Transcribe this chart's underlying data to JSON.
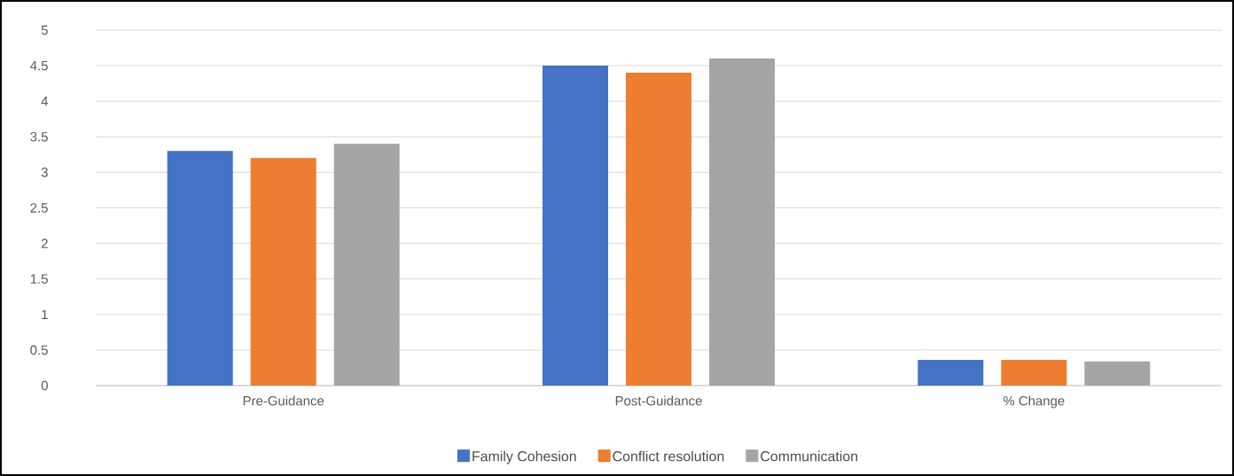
{
  "chart_data": {
    "type": "bar",
    "categories": [
      "Pre-Guidance",
      "Post-Guidance",
      "% Change"
    ],
    "series": [
      {
        "name": "Family Cohesion",
        "color": "#4472c4",
        "values": [
          3.3,
          4.5,
          0.36
        ]
      },
      {
        "name": "Conflict resolution",
        "color": "#ed7d31",
        "values": [
          3.2,
          4.4,
          0.36
        ]
      },
      {
        "name": "Communication",
        "color": "#a5a5a5",
        "values": [
          3.4,
          4.6,
          0.34
        ]
      }
    ],
    "ylim": [
      0,
      5
    ],
    "yticks": [
      0,
      0.5,
      1,
      1.5,
      2,
      2.5,
      3,
      3.5,
      4,
      4.5,
      5
    ],
    "grid": "y",
    "legend": "bottom"
  }
}
